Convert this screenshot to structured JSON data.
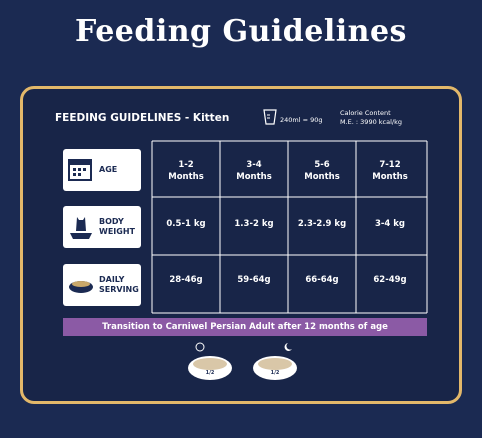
{
  "title": "Feeding Guidelines",
  "header": {
    "heading": "FEEDING GUIDELINES - Kitten",
    "measure": "240ml = 90g",
    "calorie_title": "Calorie Content",
    "calorie_value": "M.E. : 3990 kcal/kg"
  },
  "table": {
    "columns": [
      "1-2 Months",
      "3-4 Months",
      "5-6 Months",
      "7-12 Months"
    ],
    "rows": [
      {
        "label": "AGE",
        "cells": []
      },
      {
        "label": "BODY WEIGHT",
        "cells": [
          "0.5-1 kg",
          "1.3-2 kg",
          "2.3-2.9 kg",
          "3-4 kg"
        ]
      },
      {
        "label": "DAILY SERVING",
        "cells": [
          "28-46g",
          "59-64g",
          "66-64g",
          "62-49g"
        ]
      }
    ]
  },
  "banner": "Transition to Carniwel Persian Adult after 12 months of age",
  "bowls": [
    "1/2",
    "1/2"
  ]
}
